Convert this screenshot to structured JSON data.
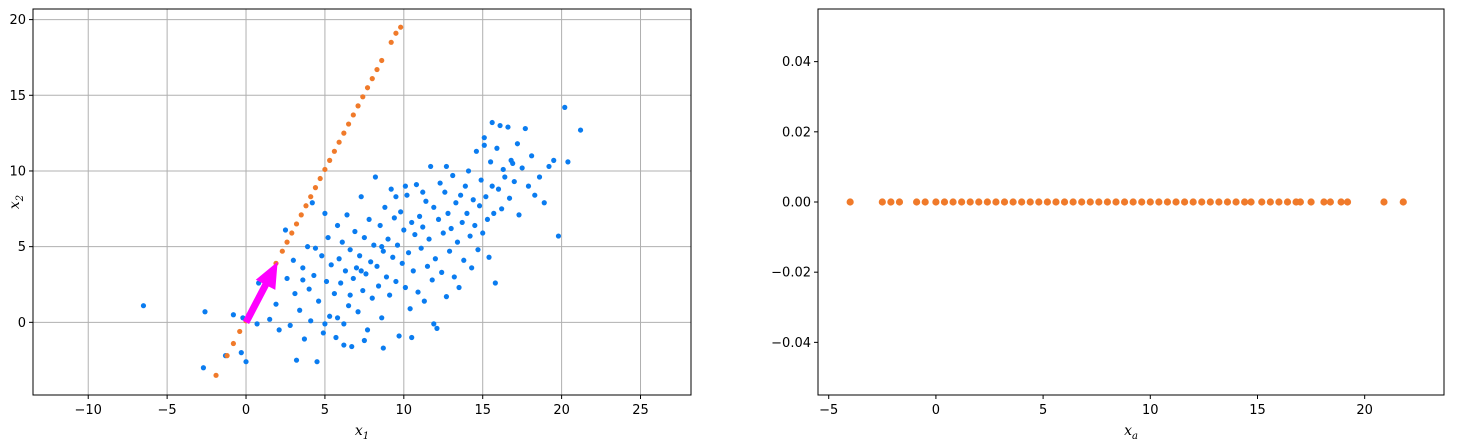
{
  "colors": {
    "blue": "#0a7cf0",
    "orange": "#f07a2a",
    "arrow": "#ff00ff",
    "grid": "#b0b0b0"
  },
  "chart_data": [
    {
      "type": "scatter",
      "title": "",
      "xlabel": "x",
      "xlabel_sub": "1",
      "ylabel": "x",
      "ylabel_sub": "2",
      "xlim": [
        -13.5,
        28.2
      ],
      "ylim": [
        -4.8,
        20.7
      ],
      "xticks": [
        -10,
        -5,
        0,
        5,
        10,
        15,
        20,
        25
      ],
      "yticks": [
        0,
        5,
        10,
        15,
        20
      ],
      "xtick_labels": [
        "−10",
        "−5",
        "0",
        "5",
        "10",
        "15",
        "20",
        "25"
      ],
      "ytick_labels": [
        "0",
        "5",
        "10",
        "15",
        "20"
      ],
      "grid": true,
      "series": [
        {
          "color": "#0a7cf0",
          "points": [
            [
              -6.5,
              1.1
            ],
            [
              -2.7,
              -3.0
            ],
            [
              -2.6,
              0.7
            ],
            [
              -1.3,
              -2.2
            ],
            [
              -0.8,
              0.5
            ],
            [
              -0.3,
              -2.0
            ],
            [
              0.0,
              -2.6
            ],
            [
              -0.2,
              0.3
            ],
            [
              0.7,
              -0.1
            ],
            [
              0.8,
              2.6
            ],
            [
              1.5,
              0.2
            ],
            [
              1.9,
              1.2
            ],
            [
              2.1,
              -0.5
            ],
            [
              2.5,
              6.1
            ],
            [
              2.6,
              2.9
            ],
            [
              2.8,
              -0.2
            ],
            [
              3.0,
              4.1
            ],
            [
              3.1,
              1.9
            ],
            [
              3.2,
              -2.5
            ],
            [
              3.4,
              0.8
            ],
            [
              3.6,
              3.6
            ],
            [
              3.7,
              -1.1
            ],
            [
              3.9,
              5.0
            ],
            [
              4.0,
              2.2
            ],
            [
              4.1,
              0.1
            ],
            [
              4.2,
              7.9
            ],
            [
              4.3,
              3.1
            ],
            [
              4.5,
              -2.6
            ],
            [
              4.6,
              1.4
            ],
            [
              4.8,
              4.4
            ],
            [
              4.9,
              -0.7
            ],
            [
              5.0,
              7.2
            ],
            [
              5.1,
              2.7
            ],
            [
              5.2,
              5.6
            ],
            [
              5.3,
              0.4
            ],
            [
              5.4,
              3.8
            ],
            [
              5.6,
              1.9
            ],
            [
              5.7,
              -1.0
            ],
            [
              5.8,
              6.4
            ],
            [
              5.9,
              4.2
            ],
            [
              6.0,
              2.6
            ],
            [
              6.1,
              5.3
            ],
            [
              6.2,
              -0.1
            ],
            [
              6.3,
              3.4
            ],
            [
              6.4,
              7.1
            ],
            [
              6.5,
              1.1
            ],
            [
              6.6,
              4.8
            ],
            [
              6.7,
              -1.6
            ],
            [
              6.8,
              2.9
            ],
            [
              6.9,
              6.0
            ],
            [
              7.0,
              3.6
            ],
            [
              7.1,
              0.7
            ],
            [
              7.2,
              4.4
            ],
            [
              7.3,
              8.3
            ],
            [
              7.4,
              2.1
            ],
            [
              7.5,
              5.6
            ],
            [
              7.6,
              3.2
            ],
            [
              7.7,
              -0.5
            ],
            [
              7.8,
              6.8
            ],
            [
              7.9,
              4.0
            ],
            [
              8.0,
              1.6
            ],
            [
              8.1,
              5.1
            ],
            [
              8.2,
              9.6
            ],
            [
              8.3,
              3.7
            ],
            [
              8.4,
              2.4
            ],
            [
              8.5,
              6.4
            ],
            [
              8.6,
              0.3
            ],
            [
              8.7,
              4.7
            ],
            [
              8.8,
              7.6
            ],
            [
              8.9,
              3.0
            ],
            [
              9.0,
              5.5
            ],
            [
              9.1,
              1.8
            ],
            [
              9.2,
              8.8
            ],
            [
              9.3,
              4.3
            ],
            [
              9.4,
              6.9
            ],
            [
              9.5,
              2.7
            ],
            [
              9.6,
              5.1
            ],
            [
              9.7,
              -0.9
            ],
            [
              9.8,
              7.3
            ],
            [
              9.9,
              3.9
            ],
            [
              10.0,
              6.1
            ],
            [
              10.1,
              2.3
            ],
            [
              10.2,
              8.4
            ],
            [
              10.3,
              4.6
            ],
            [
              10.4,
              0.9
            ],
            [
              10.5,
              6.6
            ],
            [
              10.6,
              3.4
            ],
            [
              10.7,
              5.8
            ],
            [
              10.8,
              9.1
            ],
            [
              10.9,
              2.0
            ],
            [
              11.0,
              7.0
            ],
            [
              11.1,
              4.9
            ],
            [
              11.2,
              6.3
            ],
            [
              11.3,
              1.4
            ],
            [
              11.4,
              8.0
            ],
            [
              11.5,
              3.7
            ],
            [
              11.6,
              5.5
            ],
            [
              11.7,
              10.3
            ],
            [
              11.8,
              2.8
            ],
            [
              11.9,
              7.6
            ],
            [
              12.0,
              4.2
            ],
            [
              12.1,
              -0.4
            ],
            [
              12.2,
              6.8
            ],
            [
              12.3,
              9.2
            ],
            [
              12.4,
              3.3
            ],
            [
              12.5,
              5.9
            ],
            [
              12.6,
              8.6
            ],
            [
              12.7,
              1.7
            ],
            [
              12.8,
              7.2
            ],
            [
              12.9,
              4.7
            ],
            [
              13.0,
              6.2
            ],
            [
              13.1,
              9.7
            ],
            [
              13.2,
              3.0
            ],
            [
              13.3,
              7.9
            ],
            [
              13.4,
              5.3
            ],
            [
              13.5,
              2.3
            ],
            [
              13.6,
              8.4
            ],
            [
              13.7,
              6.6
            ],
            [
              13.8,
              4.1
            ],
            [
              13.9,
              9.0
            ],
            [
              14.0,
              7.2
            ],
            [
              14.1,
              10.0
            ],
            [
              14.2,
              5.7
            ],
            [
              14.3,
              3.6
            ],
            [
              14.4,
              8.1
            ],
            [
              14.5,
              6.4
            ],
            [
              14.6,
              11.3
            ],
            [
              14.7,
              4.8
            ],
            [
              14.8,
              7.7
            ],
            [
              14.9,
              9.4
            ],
            [
              15.0,
              5.9
            ],
            [
              15.1,
              12.2
            ],
            [
              15.2,
              8.3
            ],
            [
              15.3,
              6.8
            ],
            [
              15.4,
              4.3
            ],
            [
              15.5,
              10.6
            ],
            [
              15.6,
              9.0
            ],
            [
              15.7,
              7.2
            ],
            [
              15.8,
              2.6
            ],
            [
              15.9,
              11.5
            ],
            [
              16.0,
              8.8
            ],
            [
              16.1,
              13.0
            ],
            [
              16.2,
              7.5
            ],
            [
              16.3,
              10.1
            ],
            [
              16.4,
              9.6
            ],
            [
              16.6,
              12.9
            ],
            [
              16.7,
              8.2
            ],
            [
              16.8,
              10.7
            ],
            [
              17.0,
              9.3
            ],
            [
              17.2,
              11.8
            ],
            [
              17.3,
              7.1
            ],
            [
              17.5,
              10.2
            ],
            [
              17.7,
              12.8
            ],
            [
              17.9,
              9.0
            ],
            [
              18.1,
              11.0
            ],
            [
              18.3,
              8.4
            ],
            [
              18.6,
              9.6
            ],
            [
              18.9,
              7.9
            ],
            [
              19.2,
              10.3
            ],
            [
              19.5,
              10.7
            ],
            [
              19.8,
              5.7
            ],
            [
              20.2,
              14.2
            ],
            [
              20.4,
              10.6
            ],
            [
              21.2,
              12.7
            ],
            [
              15.6,
              13.2
            ],
            [
              15.1,
              11.7
            ],
            [
              16.9,
              10.5
            ],
            [
              12.7,
              10.3
            ],
            [
              11.2,
              8.6
            ],
            [
              10.1,
              9.0
            ],
            [
              9.5,
              8.3
            ],
            [
              8.6,
              5.0
            ],
            [
              7.3,
              3.4
            ],
            [
              6.6,
              1.8
            ],
            [
              5.8,
              0.3
            ],
            [
              4.4,
              4.9
            ],
            [
              3.6,
              2.8
            ],
            [
              5.0,
              -0.1
            ],
            [
              6.2,
              -1.5
            ],
            [
              7.5,
              -1.2
            ],
            [
              8.7,
              -1.7
            ],
            [
              10.5,
              -1.0
            ],
            [
              11.9,
              -0.1
            ]
          ]
        }
      ],
      "projection_points": [
        [
          -1.9,
          -3.5
        ],
        [
          -1.2,
          -2.2
        ],
        [
          -0.8,
          -1.4
        ],
        [
          -0.4,
          -0.6
        ],
        [
          0.0,
          0.1
        ],
        [
          0.4,
          0.9
        ],
        [
          0.8,
          1.7
        ],
        [
          1.1,
          2.3
        ],
        [
          1.5,
          3.1
        ],
        [
          1.9,
          3.9
        ],
        [
          2.3,
          4.7
        ],
        [
          2.6,
          5.3
        ],
        [
          2.9,
          5.9
        ],
        [
          3.2,
          6.5
        ],
        [
          3.5,
          7.1
        ],
        [
          3.8,
          7.7
        ],
        [
          4.1,
          8.3
        ],
        [
          4.4,
          8.9
        ],
        [
          4.7,
          9.5
        ],
        [
          5.0,
          10.1
        ],
        [
          5.3,
          10.7
        ],
        [
          5.6,
          11.3
        ],
        [
          5.9,
          11.9
        ],
        [
          6.2,
          12.5
        ],
        [
          6.5,
          13.1
        ],
        [
          6.8,
          13.7
        ],
        [
          7.1,
          14.3
        ],
        [
          7.4,
          14.9
        ],
        [
          7.7,
          15.5
        ],
        [
          8.0,
          16.1
        ],
        [
          8.3,
          16.7
        ],
        [
          8.6,
          17.3
        ],
        [
          9.2,
          18.5
        ],
        [
          9.5,
          19.1
        ],
        [
          9.8,
          19.5
        ]
      ],
      "arrow": {
        "x0": 0.0,
        "y0": 0.0,
        "x1": 2.0,
        "y1": 4.0,
        "color": "#ff00ff"
      }
    },
    {
      "type": "scatter",
      "title": "",
      "xlabel": "x",
      "xlabel_sub": "a",
      "ylabel": "",
      "xlim": [
        -5.5,
        23.7
      ],
      "ylim": [
        -0.055,
        0.055
      ],
      "xticks": [
        -5,
        0,
        5,
        10,
        15,
        20
      ],
      "yticks": [
        -0.04,
        -0.02,
        0.0,
        0.02,
        0.04
      ],
      "xtick_labels": [
        "−5",
        "0",
        "5",
        "10",
        "15",
        "20"
      ],
      "ytick_labels": [
        "−0.04",
        "−0.02",
        "0.00",
        "0.02",
        "0.04"
      ],
      "grid": false,
      "series": [
        {
          "color": "#f07a2a",
          "points": [
            [
              -4.0,
              0
            ],
            [
              -2.5,
              0
            ],
            [
              -2.1,
              0
            ],
            [
              -1.7,
              0
            ],
            [
              -0.9,
              0
            ],
            [
              -0.5,
              0
            ],
            [
              0.0,
              0
            ],
            [
              0.4,
              0
            ],
            [
              0.8,
              0
            ],
            [
              1.2,
              0
            ],
            [
              1.6,
              0
            ],
            [
              2.0,
              0
            ],
            [
              2.4,
              0
            ],
            [
              2.8,
              0
            ],
            [
              3.2,
              0
            ],
            [
              3.6,
              0
            ],
            [
              4.0,
              0
            ],
            [
              4.4,
              0
            ],
            [
              4.8,
              0
            ],
            [
              5.2,
              0
            ],
            [
              5.6,
              0
            ],
            [
              6.0,
              0
            ],
            [
              6.4,
              0
            ],
            [
              6.8,
              0
            ],
            [
              7.2,
              0
            ],
            [
              7.6,
              0
            ],
            [
              8.0,
              0
            ],
            [
              8.4,
              0
            ],
            [
              8.8,
              0
            ],
            [
              9.2,
              0
            ],
            [
              9.6,
              0
            ],
            [
              10.0,
              0
            ],
            [
              10.4,
              0
            ],
            [
              10.8,
              0
            ],
            [
              11.2,
              0
            ],
            [
              11.6,
              0
            ],
            [
              12.0,
              0
            ],
            [
              12.4,
              0
            ],
            [
              12.8,
              0
            ],
            [
              13.2,
              0
            ],
            [
              13.6,
              0
            ],
            [
              14.0,
              0
            ],
            [
              14.4,
              0
            ],
            [
              14.7,
              0
            ],
            [
              15.2,
              0
            ],
            [
              15.6,
              0
            ],
            [
              16.0,
              0
            ],
            [
              16.4,
              0
            ],
            [
              16.8,
              0
            ],
            [
              17.0,
              0
            ],
            [
              17.5,
              0
            ],
            [
              18.1,
              0
            ],
            [
              18.4,
              0
            ],
            [
              18.9,
              0
            ],
            [
              19.2,
              0
            ],
            [
              20.9,
              0
            ],
            [
              21.8,
              0
            ]
          ]
        }
      ]
    }
  ]
}
